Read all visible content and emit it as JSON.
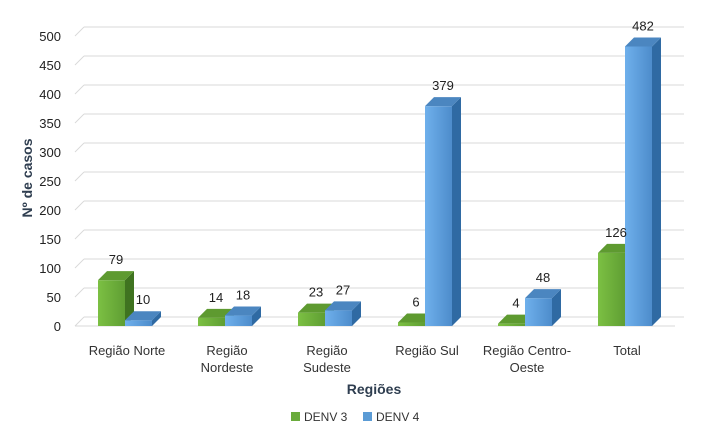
{
  "chart_data": {
    "type": "bar",
    "categories": [
      [
        "Região Norte"
      ],
      [
        "Região",
        "Nordeste"
      ],
      [
        "Região",
        "Sudeste"
      ],
      [
        "Região Sul"
      ],
      [
        "Região Centro-",
        "Oeste"
      ],
      [
        "Total"
      ]
    ],
    "series": [
      {
        "name": "DENV 3",
        "values": [
          79,
          14,
          23,
          6,
          4,
          126
        ],
        "color": "#6aab3c"
      },
      {
        "name": "DENV 4",
        "values": [
          10,
          18,
          27,
          379,
          48,
          482
        ],
        "color": "#5b9bd5"
      }
    ],
    "xlabel": "Regiões",
    "ylabel": "Nº de casos",
    "ylim": [
      0,
      500
    ],
    "yticks": [
      0,
      50,
      100,
      150,
      200,
      250,
      300,
      350,
      400,
      450,
      500
    ],
    "grid": true,
    "legend_position": "bottom"
  }
}
